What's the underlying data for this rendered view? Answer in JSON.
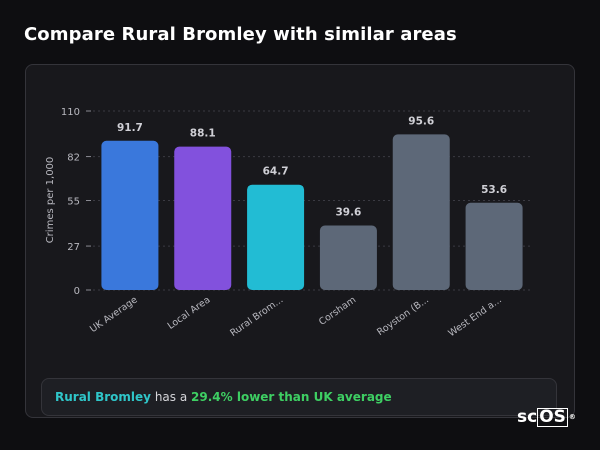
{
  "page": {
    "title": "Compare Rural Bromley with similar areas"
  },
  "chart_data": {
    "type": "bar",
    "ylabel": "Crimes per 1,000",
    "xlabel": "",
    "ylim": [
      0,
      110
    ],
    "yticks": [
      0,
      27,
      55,
      82,
      110
    ],
    "grid": true,
    "categories": [
      "UK Average",
      "Local Area",
      "Rural Brom...",
      "Corsham",
      "Royston (B...",
      "West End a..."
    ],
    "values": [
      91.7,
      88.1,
      64.7,
      39.6,
      95.6,
      53.6
    ],
    "value_labels": [
      "91.7",
      "88.1",
      "64.7",
      "39.6",
      "95.6",
      "53.6"
    ],
    "colors": [
      "#3a78dc",
      "#8251dd",
      "#22bcd4",
      "#5d6878",
      "#5d6878",
      "#5d6878"
    ]
  },
  "summary": {
    "area": "Rural Bromley",
    "text_middle": "has a",
    "difference": "29.4% lower than UK average"
  },
  "logo": {
    "prefix": "sc",
    "boxed": "OS",
    "mark": "®"
  }
}
